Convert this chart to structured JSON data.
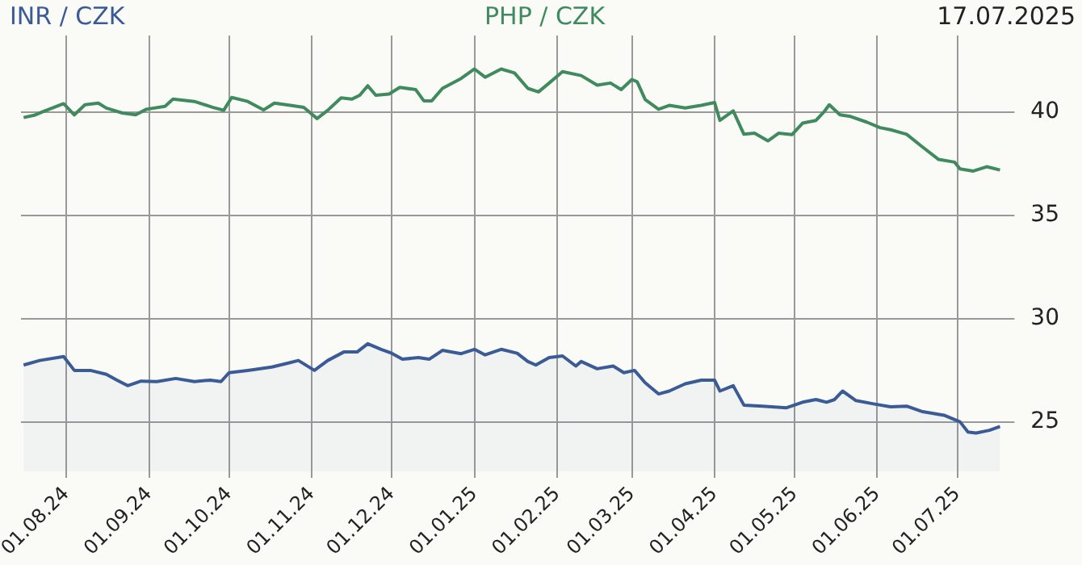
{
  "chart_data": {
    "type": "line",
    "annotations": [
      "17.07.2025"
    ],
    "legend": "top",
    "grid": true,
    "marker": "none",
    "xlim": [
      "2024-07-15",
      "2025-07-20"
    ],
    "xticks": [
      {
        "value": "2024-08-01",
        "label": "01.08.24"
      },
      {
        "value": "2024-09-01",
        "label": "01.09.24"
      },
      {
        "value": "2024-10-01",
        "label": "01.10.24"
      },
      {
        "value": "2024-11-01",
        "label": "01.11.24"
      },
      {
        "value": "2024-12-01",
        "label": "01.12.24"
      },
      {
        "value": "2025-01-01",
        "label": "01.01.25"
      },
      {
        "value": "2025-02-01",
        "label": "01.02.25"
      },
      {
        "value": "2025-03-01",
        "label": "01.03.25"
      },
      {
        "value": "2025-04-01",
        "label": "01.04.25"
      },
      {
        "value": "2025-05-01",
        "label": "01.05.25"
      },
      {
        "value": "2025-06-01",
        "label": "01.06.25"
      },
      {
        "value": "2025-07-01",
        "label": "01.07.25"
      }
    ],
    "ylim": [
      22.6,
      43.7
    ],
    "yticks": [
      25,
      30,
      35,
      40
    ],
    "series": [
      {
        "name": "INR / CZK",
        "type": "area",
        "color": "#3b5b96",
        "x": [
          "2024-07-16",
          "2024-07-22",
          "2024-07-31",
          "2024-08-04",
          "2024-08-10",
          "2024-08-16",
          "2024-08-20",
          "2024-08-24",
          "2024-08-29",
          "2024-09-04",
          "2024-09-11",
          "2024-09-18",
          "2024-09-24",
          "2024-09-28",
          "2024-10-01",
          "2024-10-08",
          "2024-10-17",
          "2024-10-23",
          "2024-10-27",
          "2024-11-02",
          "2024-11-07",
          "2024-11-13",
          "2024-11-18",
          "2024-11-22",
          "2024-11-27",
          "2024-12-01",
          "2024-12-05",
          "2024-12-11",
          "2024-12-15",
          "2024-12-20",
          "2024-12-27",
          "2025-01-01",
          "2025-01-05",
          "2025-01-11",
          "2025-01-17",
          "2025-01-21",
          "2025-01-24",
          "2025-01-29",
          "2025-02-03",
          "2025-02-08",
          "2025-02-10",
          "2025-02-16",
          "2025-02-22",
          "2025-02-26",
          "2025-03-02",
          "2025-03-06",
          "2025-03-11",
          "2025-03-15",
          "2025-03-21",
          "2025-03-27",
          "2025-04-01",
          "2025-04-03",
          "2025-04-08",
          "2025-04-12",
          "2025-04-19",
          "2025-04-28",
          "2025-05-04",
          "2025-05-09",
          "2025-05-13",
          "2025-05-16",
          "2025-05-19",
          "2025-05-24",
          "2025-05-31",
          "2025-06-06",
          "2025-06-12",
          "2025-06-18",
          "2025-06-26",
          "2025-07-02",
          "2025-07-05",
          "2025-07-08",
          "2025-07-13",
          "2025-07-17"
        ],
        "values": [
          27.75,
          27.97,
          28.16,
          27.49,
          27.49,
          27.3,
          27.02,
          26.75,
          26.97,
          26.95,
          27.1,
          26.95,
          27.02,
          26.95,
          27.38,
          27.49,
          27.65,
          27.84,
          27.97,
          27.49,
          27.97,
          28.38,
          28.38,
          28.78,
          28.51,
          28.32,
          28.03,
          28.11,
          28.03,
          28.46,
          28.3,
          28.51,
          28.24,
          28.51,
          28.32,
          27.92,
          27.75,
          28.11,
          28.19,
          27.7,
          27.92,
          27.57,
          27.7,
          27.38,
          27.49,
          26.89,
          26.35,
          26.49,
          26.84,
          27.02,
          27.02,
          26.49,
          26.75,
          25.81,
          25.76,
          25.68,
          25.95,
          26.08,
          25.95,
          26.08,
          26.49,
          26.03,
          25.86,
          25.73,
          25.76,
          25.49,
          25.32,
          25.0,
          24.51,
          24.46,
          24.59,
          24.78
        ]
      },
      {
        "name": "PHP / CZK",
        "color": "#3f8a5e",
        "x": [
          "2024-07-16",
          "2024-07-20",
          "2024-07-23",
          "2024-07-31",
          "2024-08-04",
          "2024-08-08",
          "2024-08-13",
          "2024-08-16",
          "2024-08-22",
          "2024-08-27",
          "2024-08-31",
          "2024-09-07",
          "2024-09-10",
          "2024-09-18",
          "2024-09-25",
          "2024-09-29",
          "2024-10-02",
          "2024-10-08",
          "2024-10-14",
          "2024-10-18",
          "2024-10-24",
          "2024-10-29",
          "2024-11-03",
          "2024-11-07",
          "2024-11-12",
          "2024-11-16",
          "2024-11-19",
          "2024-11-22",
          "2024-11-25",
          "2024-11-30",
          "2024-12-04",
          "2024-12-10",
          "2024-12-13",
          "2024-12-16",
          "2024-12-20",
          "2024-12-27",
          "2025-01-01",
          "2025-01-05",
          "2025-01-11",
          "2025-01-16",
          "2025-01-21",
          "2025-01-25",
          "2025-01-29",
          "2025-02-03",
          "2025-02-10",
          "2025-02-16",
          "2025-02-21",
          "2025-02-25",
          "2025-03-01",
          "2025-03-03",
          "2025-03-06",
          "2025-03-11",
          "2025-03-15",
          "2025-03-21",
          "2025-03-27",
          "2025-04-01",
          "2025-04-03",
          "2025-04-08",
          "2025-04-12",
          "2025-04-16",
          "2025-04-21",
          "2025-04-25",
          "2025-04-30",
          "2025-05-04",
          "2025-05-09",
          "2025-05-12",
          "2025-05-14",
          "2025-05-18",
          "2025-05-22",
          "2025-05-28",
          "2025-06-02",
          "2025-06-06",
          "2025-06-12",
          "2025-06-18",
          "2025-06-24",
          "2025-06-30",
          "2025-07-02",
          "2025-07-07",
          "2025-07-12",
          "2025-07-17"
        ],
        "values": [
          39.73,
          39.84,
          40.0,
          40.4,
          39.86,
          40.35,
          40.43,
          40.19,
          39.95,
          39.86,
          40.13,
          40.27,
          40.62,
          40.51,
          40.22,
          40.08,
          40.7,
          40.51,
          40.1,
          40.43,
          40.32,
          40.22,
          39.68,
          40.08,
          40.68,
          40.62,
          40.81,
          41.27,
          40.81,
          40.87,
          41.19,
          41.08,
          40.54,
          40.54,
          41.14,
          41.62,
          42.08,
          41.68,
          42.08,
          41.89,
          41.14,
          40.97,
          41.4,
          41.95,
          41.76,
          41.3,
          41.4,
          41.08,
          41.57,
          41.46,
          40.6,
          40.13,
          40.32,
          40.19,
          40.32,
          40.46,
          39.59,
          40.05,
          38.92,
          38.97,
          38.6,
          38.97,
          38.9,
          39.46,
          39.59,
          40.0,
          40.35,
          39.86,
          39.78,
          39.51,
          39.24,
          39.14,
          38.92,
          38.3,
          37.7,
          37.57,
          37.24,
          37.14,
          37.35,
          37.19
        ]
      }
    ]
  }
}
